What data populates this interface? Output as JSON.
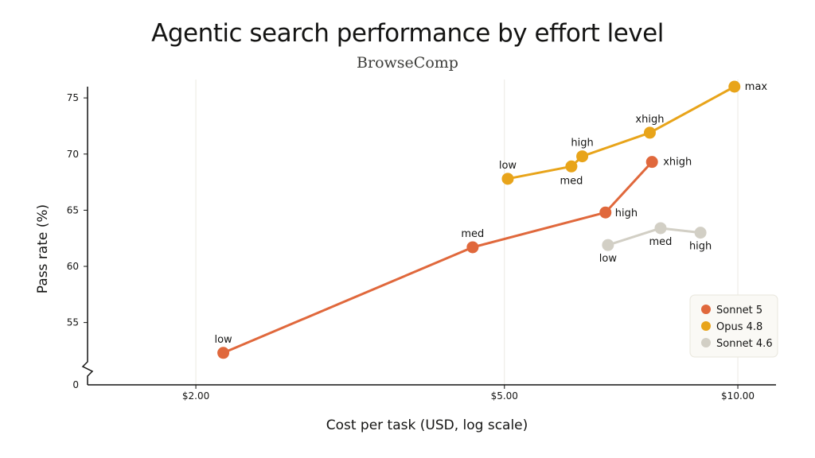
{
  "chart_data": {
    "type": "line",
    "title": "Agentic search performance by effort level",
    "subtitle": "BrowseComp",
    "xlabel": "Cost per task (USD, log scale)",
    "ylabel": "Pass rate (%)",
    "x_scale": "log",
    "xlim": [
      1.45,
      11.2
    ],
    "x_ticks": [
      {
        "value": 2.0,
        "label": "$2.00"
      },
      {
        "value": 5.0,
        "label": "$5.00"
      },
      {
        "value": 10.0,
        "label": "$10.00"
      }
    ],
    "ylim": [
      52,
      76
    ],
    "y_ticks": [
      {
        "value": 75,
        "label": "75"
      },
      {
        "value": 70,
        "label": "70"
      },
      {
        "value": 65,
        "label": "65"
      },
      {
        "value": 60,
        "label": "60"
      },
      {
        "value": 55,
        "label": "55"
      }
    ],
    "y_axis_break": {
      "label": "0"
    },
    "grid": "vertical at x ticks",
    "legend_position": "bottom-right",
    "series": [
      {
        "name": "Sonnet 5",
        "color": "#e0683c",
        "points": [
          {
            "x": 2.17,
            "y": 52.3,
            "label": "low"
          },
          {
            "x": 4.55,
            "y": 61.7,
            "label": "med"
          },
          {
            "x": 6.75,
            "y": 64.8,
            "label": "high"
          },
          {
            "x": 7.75,
            "y": 69.3,
            "label": "xhigh"
          }
        ]
      },
      {
        "name": "Opus 4.8",
        "color": "#e8a41a",
        "points": [
          {
            "x": 5.05,
            "y": 67.8,
            "label": "low"
          },
          {
            "x": 6.1,
            "y": 68.9,
            "label": "med"
          },
          {
            "x": 6.3,
            "y": 69.8,
            "label": "high"
          },
          {
            "x": 7.7,
            "y": 71.9,
            "label": "xhigh"
          },
          {
            "x": 9.9,
            "y": 76.0,
            "label": "max"
          }
        ]
      },
      {
        "name": "Sonnet 4.6",
        "color": "#d2cfc5",
        "points": [
          {
            "x": 6.8,
            "y": 61.9,
            "label": "low"
          },
          {
            "x": 7.95,
            "y": 63.4,
            "label": "med"
          },
          {
            "x": 8.95,
            "y": 63.0,
            "label": "high"
          }
        ]
      }
    ]
  }
}
